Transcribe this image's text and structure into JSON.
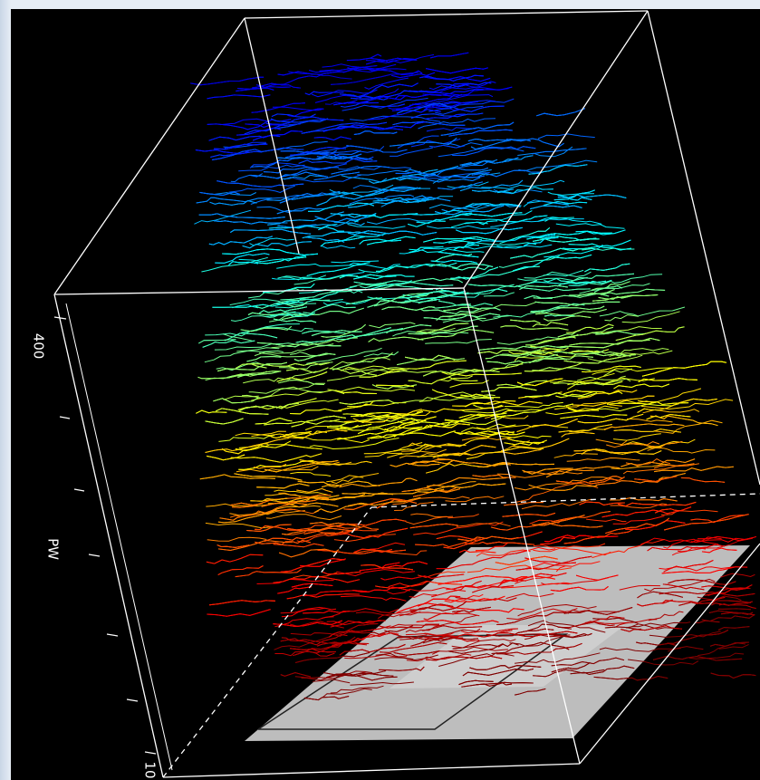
{
  "axis": {
    "title": "PW",
    "tick_labels": [
      "400",
      "10"
    ]
  }
}
